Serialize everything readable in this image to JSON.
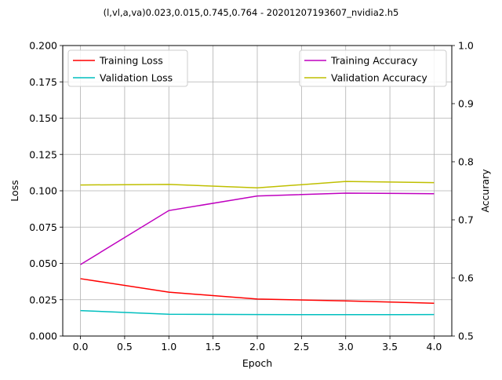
{
  "chart_data": {
    "type": "line",
    "title": "(l,vl,a,va)0.023,0.015,0.745,0.764 - 20201207193607_nvidia2.h5",
    "xlabel": "Epoch",
    "ylabel_left": "Loss",
    "ylabel_right": "Accurary",
    "x": [
      0,
      1,
      2,
      3,
      4
    ],
    "xlim": [
      -0.2,
      4.2
    ],
    "ylim_left": [
      0.0,
      0.2
    ],
    "ylim_right": [
      0.5,
      1.0
    ],
    "x_ticks": [
      "0.0",
      "0.5",
      "1.0",
      "1.5",
      "2.0",
      "2.5",
      "3.0",
      "3.5",
      "4.0"
    ],
    "y_left_ticks": [
      "0.000",
      "0.025",
      "0.050",
      "0.075",
      "0.100",
      "0.125",
      "0.150",
      "0.175",
      "0.200"
    ],
    "y_right_ticks": [
      "0.5",
      "0.6",
      "0.7",
      "0.8",
      "0.9",
      "1.0"
    ],
    "grid": true,
    "left_series": [
      {
        "name": "Training Loss",
        "color": "#ff0000",
        "values": [
          0.0395,
          0.0302,
          0.0255,
          0.0242,
          0.0226
        ]
      },
      {
        "name": "Validation Loss",
        "color": "#00bfbf",
        "values": [
          0.0175,
          0.015,
          0.0148,
          0.0147,
          0.0148
        ]
      }
    ],
    "right_series": [
      {
        "name": "Training Accuracy",
        "color": "#bf00bf",
        "values": [
          0.623,
          0.716,
          0.741,
          0.746,
          0.745
        ]
      },
      {
        "name": "Validation Accuracy",
        "color": "#bfbf00",
        "values": [
          0.76,
          0.761,
          0.755,
          0.766,
          0.764
        ]
      }
    ],
    "legend_left_position": "upper-left",
    "legend_right_position": "upper-right"
  }
}
